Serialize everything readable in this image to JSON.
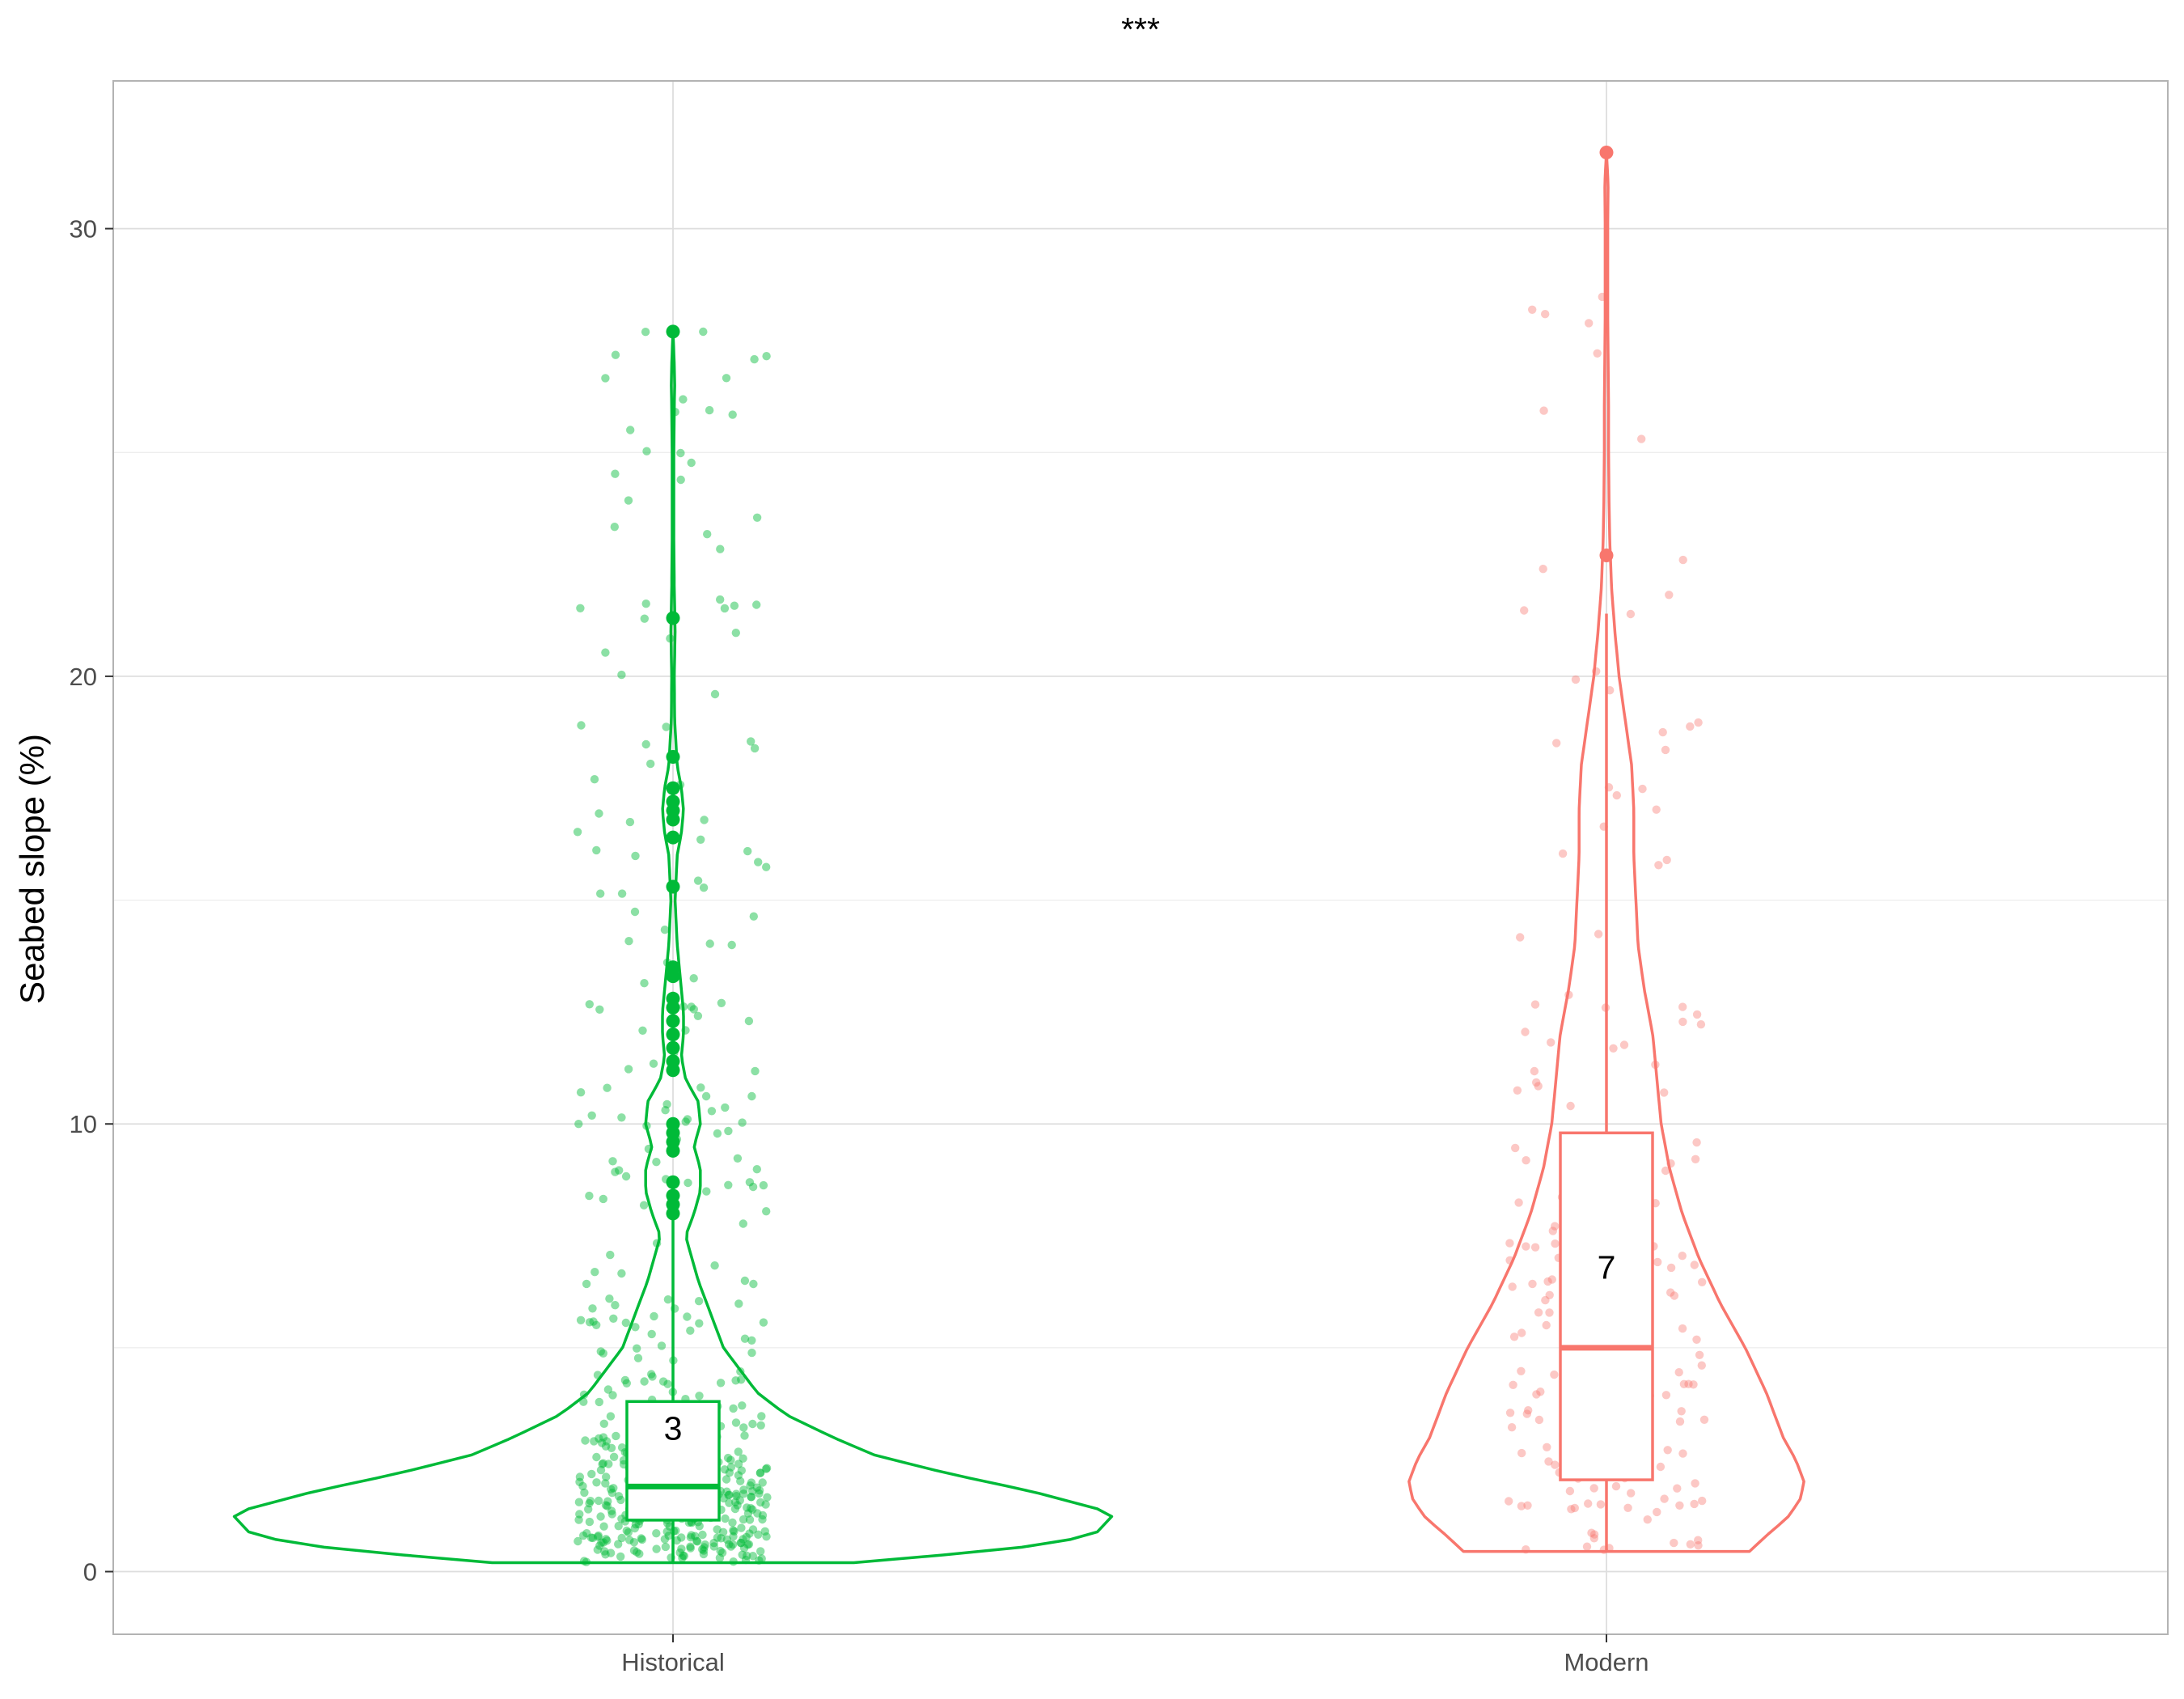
{
  "chart_data": {
    "type": "violin",
    "annotation": "***",
    "ylabel": "Seabed slope (%)",
    "xlabel": "",
    "ylim": [
      -1.4,
      33.3
    ],
    "yticks": [
      0,
      10,
      20,
      30
    ],
    "grid": true,
    "categories": [
      "Historical",
      "Modern"
    ],
    "groups": [
      {
        "category": "Historical",
        "color": "#00BA38",
        "box": {
          "q1": 1.15,
          "median": 1.9,
          "q3": 3.8,
          "whisker_low": 0.2,
          "whisker_high": 8.0
        },
        "mean_label": "3",
        "mean_label_y": 3.2,
        "outliers": [
          27.7,
          21.3,
          18.2,
          17.5,
          17.2,
          17.0,
          16.8,
          16.4,
          15.3,
          13.5,
          13.3,
          12.8,
          12.6,
          12.3,
          12.0,
          11.7,
          11.4,
          11.2,
          10.0,
          9.8,
          9.6,
          9.4,
          8.7,
          8.4,
          8.2,
          8.0
        ],
        "violin": [
          [
            0.2,
            0.43
          ],
          [
            0.5,
            0.8
          ],
          [
            0.8,
            1.0
          ],
          [
            1.3,
            1.05
          ],
          [
            1.8,
            0.85
          ],
          [
            2.2,
            0.65
          ],
          [
            2.6,
            0.48
          ],
          [
            3.0,
            0.38
          ],
          [
            3.5,
            0.27
          ],
          [
            4.0,
            0.2
          ],
          [
            5.0,
            0.12
          ],
          [
            6.0,
            0.08
          ],
          [
            6.5,
            0.06
          ],
          [
            7.0,
            0.045
          ],
          [
            7.5,
            0.03
          ],
          [
            8.0,
            0.05
          ],
          [
            8.5,
            0.065
          ],
          [
            9.0,
            0.065
          ],
          [
            9.5,
            0.05
          ],
          [
            10.0,
            0.065
          ],
          [
            10.5,
            0.06
          ],
          [
            11.0,
            0.03
          ],
          [
            11.5,
            0.02
          ],
          [
            12.0,
            0.025
          ],
          [
            12.5,
            0.025
          ],
          [
            13.0,
            0.02
          ],
          [
            14.0,
            0.01
          ],
          [
            15.0,
            0.005
          ],
          [
            16.0,
            0.01
          ],
          [
            16.5,
            0.02
          ],
          [
            17.0,
            0.025
          ],
          [
            17.5,
            0.02
          ],
          [
            18.0,
            0.01
          ],
          [
            19.0,
            0.004
          ],
          [
            20.0,
            0.003
          ],
          [
            21.0,
            0.005
          ],
          [
            22.0,
            0.003
          ],
          [
            23.0,
            0.002
          ],
          [
            24.0,
            0.002
          ],
          [
            25.0,
            0.002
          ],
          [
            26.0,
            0.003
          ],
          [
            26.5,
            0.004
          ],
          [
            27.0,
            0.003
          ],
          [
            27.7,
            0.0
          ]
        ]
      },
      {
        "category": "Modern",
        "color": "#F8766D",
        "box": {
          "q1": 2.05,
          "median": 5.0,
          "q3": 9.8,
          "whisker_low": 0.45,
          "whisker_high": 21.4
        },
        "mean_label": "7",
        "mean_label_y": 6.8,
        "outliers": [
          31.7,
          22.7
        ],
        "violin": [
          [
            0.45,
            0.34
          ],
          [
            0.8,
            0.38
          ],
          [
            1.2,
            0.43
          ],
          [
            1.6,
            0.46
          ],
          [
            2.0,
            0.47
          ],
          [
            2.5,
            0.45
          ],
          [
            3.0,
            0.42
          ],
          [
            4.0,
            0.38
          ],
          [
            5.0,
            0.33
          ],
          [
            6.0,
            0.27
          ],
          [
            7.0,
            0.22
          ],
          [
            8.0,
            0.18
          ],
          [
            9.0,
            0.15
          ],
          [
            10.0,
            0.13
          ],
          [
            11.0,
            0.12
          ],
          [
            12.0,
            0.11
          ],
          [
            13.0,
            0.09
          ],
          [
            14.0,
            0.075
          ],
          [
            15.0,
            0.07
          ],
          [
            16.0,
            0.065
          ],
          [
            17.0,
            0.065
          ],
          [
            18.0,
            0.06
          ],
          [
            19.0,
            0.045
          ],
          [
            20.0,
            0.03
          ],
          [
            21.0,
            0.02
          ],
          [
            22.0,
            0.012
          ],
          [
            23.0,
            0.008
          ],
          [
            24.0,
            0.006
          ],
          [
            25.0,
            0.005
          ],
          [
            26.0,
            0.005
          ],
          [
            27.0,
            0.004
          ],
          [
            28.0,
            0.003
          ],
          [
            29.0,
            0.003
          ],
          [
            30.0,
            0.003
          ],
          [
            31.0,
            0.004
          ],
          [
            31.7,
            0.0
          ]
        ]
      }
    ]
  }
}
